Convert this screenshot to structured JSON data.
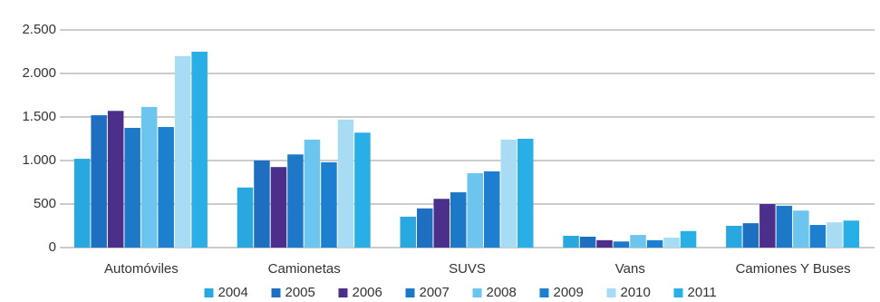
{
  "chart_data": {
    "type": "bar",
    "categories": [
      "Automóviles",
      "Camionetas",
      "SUVS",
      "Vans",
      "Camiones Y Buses"
    ],
    "series": [
      {
        "name": "2004",
        "color": "#29a8e0",
        "values": [
          1020,
          690,
          355,
          135,
          250
        ]
      },
      {
        "name": "2005",
        "color": "#1f6fc0",
        "values": [
          1520,
          1000,
          450,
          125,
          280
        ]
      },
      {
        "name": "2006",
        "color": "#4b2f8a",
        "values": [
          1570,
          925,
          560,
          85,
          500
        ]
      },
      {
        "name": "2007",
        "color": "#1e78c8",
        "values": [
          1375,
          1070,
          635,
          70,
          480
        ]
      },
      {
        "name": "2008",
        "color": "#6cc5ee",
        "values": [
          1615,
          1240,
          855,
          145,
          425
        ]
      },
      {
        "name": "2009",
        "color": "#1c7fd0",
        "values": [
          1385,
          980,
          875,
          85,
          260
        ]
      },
      {
        "name": "2010",
        "color": "#a8dcf4",
        "values": [
          2200,
          1470,
          1240,
          115,
          290
        ]
      },
      {
        "name": "2011",
        "color": "#2aaee6",
        "values": [
          2250,
          1320,
          1250,
          190,
          310
        ]
      }
    ],
    "ylim": [
      0,
      2500
    ],
    "yticks": [
      0,
      500,
      {
        "value": 1000,
        "label": "1.000"
      },
      {
        "value": 1500,
        "label": "1.500"
      },
      {
        "value": 2000,
        "label": "2.000"
      },
      {
        "value": 2500,
        "label": "2.500"
      }
    ],
    "grid": true,
    "legend": "bottom"
  }
}
